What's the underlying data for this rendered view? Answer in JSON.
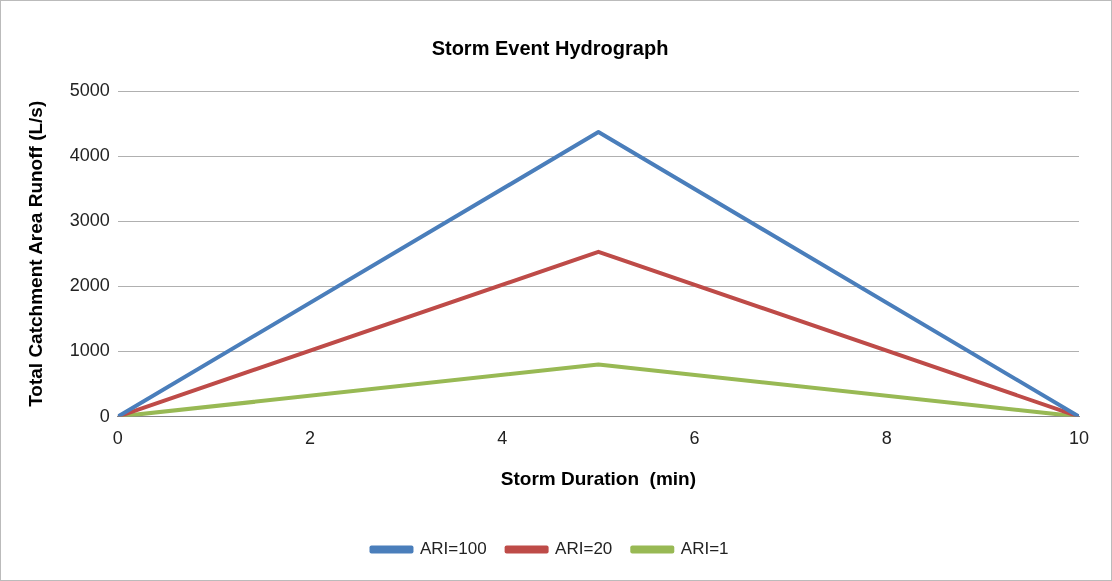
{
  "chart_data": {
    "type": "line",
    "title": "Storm Event Hydrograph",
    "xlabel": "Storm Duration  (min)",
    "ylabel": "Total Catchment Area Runoff (L/s)",
    "x": [
      0,
      5,
      10
    ],
    "series": [
      {
        "name": "ARI=100",
        "color": "#4a7ebb",
        "values": [
          0,
          4370,
          0
        ]
      },
      {
        "name": "ARI=20",
        "color": "#be4b48",
        "values": [
          0,
          2530,
          0
        ]
      },
      {
        "name": "ARI=1",
        "color": "#98b954",
        "values": [
          0,
          800,
          0
        ]
      }
    ],
    "xlim": [
      0,
      10
    ],
    "xticks": [
      0,
      2,
      4,
      6,
      8,
      10
    ],
    "ylim": [
      0,
      5000
    ],
    "yticks": [
      0,
      1000,
      2000,
      3000,
      4000,
      5000
    ],
    "grid": "y",
    "legend": "bottom",
    "marker": "none",
    "line_style": "solid"
  }
}
